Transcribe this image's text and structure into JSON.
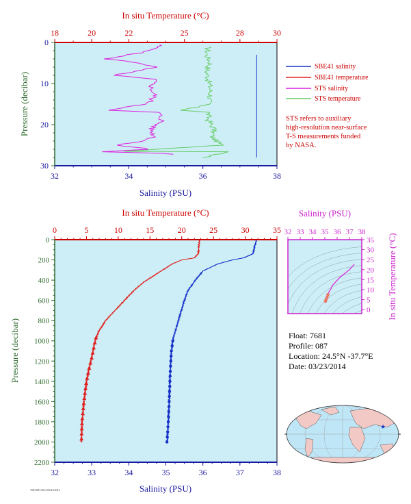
{
  "colors": {
    "plot_bg": "#cdeef6",
    "temperature": "#e0201e",
    "salinity": "#1530c8",
    "sts_salinity": "#dd22dd",
    "sts_temperature": "#66cc66",
    "axis_red": "#cc0000",
    "axis_blue": "#1a1aa0",
    "axis_green": "#2e6b2e",
    "axis_magenta": "#cc22cc"
  },
  "top_panel": {
    "top_axis_title": "In situ Temperature (°C)",
    "bottom_axis_title": "Salinity (PSU)",
    "left_axis_title": "Pressure (decibar)",
    "temp_ticks": [
      "18",
      "20",
      "22",
      "25",
      "28",
      "30"
    ],
    "sal_ticks": [
      "32",
      "34",
      "36",
      "38"
    ],
    "p_ticks": [
      "0",
      "10",
      "20",
      "30"
    ]
  },
  "legend": [
    {
      "label": "SBE41 salinity",
      "color": "#1530c8"
    },
    {
      "label": "SBE41 temperature",
      "color": "#e0201e"
    },
    {
      "label": "STS salinity",
      "color": "#dd22dd"
    },
    {
      "label": "STS temperature",
      "color": "#66cc66"
    }
  ],
  "note": {
    "lines": [
      "STS refers to auxiliary",
      "high-resolution near-surface",
      "T-S measurements funded",
      "by NASA."
    ]
  },
  "main_panel": {
    "top_axis_title": "In situ Temperature (°C)",
    "bottom_axis_title": "Salinity (PSU)",
    "left_axis_title": "Pressure (decibar)",
    "temp_ticks": [
      "0",
      "5",
      "10",
      "15",
      "20",
      "25",
      "30",
      "35"
    ],
    "sal_ticks": [
      "32",
      "33",
      "34",
      "35",
      "36",
      "37",
      "38"
    ],
    "p_ticks": [
      "0",
      "200",
      "400",
      "600",
      "800",
      "1000",
      "1200",
      "1400",
      "1600",
      "1800",
      "2000",
      "2200"
    ]
  },
  "ts_panel": {
    "top_axis_title": "Salinity (PSU)",
    "right_axis_title": "In situ Temperature (°C)",
    "sal_ticks": [
      "32",
      "33",
      "34",
      "35",
      "36",
      "37",
      "38"
    ],
    "temp_ticks": [
      "0",
      "5",
      "10",
      "15",
      "20",
      "25",
      "30",
      "35"
    ]
  },
  "float_info": {
    "float_line": "Float:  7681",
    "profile_line": "Profile:  087",
    "location_line": "Location:  24.5°N  -37.7°E",
    "date_line": "Date:  03/23/2014"
  },
  "footer_code": "7681/087/2014 03/23/2014",
  "chart_data": [
    {
      "type": "line",
      "panel": "near-surface profile",
      "xlabel": "Salinity (PSU)",
      "x2label": "In situ Temperature (°C)",
      "ylabel": "Pressure (decibar)",
      "xlim": [
        32,
        38
      ],
      "x2lim": [
        18,
        30
      ],
      "ylim": [
        30,
        0
      ],
      "series": [
        {
          "name": "SBE41 salinity",
          "points": [
            [
              37.45,
              3
            ],
            [
              37.45,
              28
            ]
          ]
        },
        {
          "name": "SBE41 temperature",
          "points": []
        },
        {
          "name": "STS salinity",
          "points": [
            [
              34.85,
              0.5
            ],
            [
              34.6,
              2
            ],
            [
              33.4,
              4
            ],
            [
              34.3,
              5
            ],
            [
              34.7,
              6
            ],
            [
              33.6,
              8
            ],
            [
              34.7,
              9
            ],
            [
              34.6,
              11
            ],
            [
              34.7,
              13
            ],
            [
              34.5,
              15
            ],
            [
              33.4,
              16.5
            ],
            [
              34.8,
              17
            ],
            [
              34.9,
              19
            ],
            [
              34.6,
              21
            ],
            [
              34.7,
              23
            ],
            [
              34.4,
              24
            ],
            [
              33.7,
              25
            ],
            [
              34.6,
              26
            ],
            [
              33.3,
              26.6
            ],
            [
              34.9,
              27
            ],
            [
              35.2,
              27.2
            ]
          ]
        },
        {
          "name": "STS temperature",
          "points": [
            [
              26.3,
              1
            ],
            [
              26.2,
              3
            ],
            [
              26.4,
              5
            ],
            [
              26.2,
              7
            ],
            [
              26.3,
              9
            ],
            [
              26.4,
              11
            ],
            [
              26.4,
              13
            ],
            [
              26.3,
              15
            ],
            [
              24.9,
              16.5
            ],
            [
              26.3,
              17
            ],
            [
              26.3,
              19
            ],
            [
              26.6,
              21
            ],
            [
              26.5,
              23
            ],
            [
              27.0,
              25
            ],
            [
              21.9,
              26.5
            ],
            [
              27.5,
              26.6
            ],
            [
              26.0,
              28
            ]
          ]
        }
      ]
    },
    {
      "type": "line",
      "panel": "full-depth profile",
      "xlabel": "Salinity (PSU)",
      "x2label": "In situ Temperature (°C)",
      "ylabel": "Pressure (decibar)",
      "xlim": [
        32,
        38
      ],
      "x2lim": [
        0,
        35
      ],
      "ylim": [
        2200,
        0
      ],
      "series": [
        {
          "name": "SBE41 temperature",
          "points": [
            [
              22.8,
              0
            ],
            [
              22.7,
              60
            ],
            [
              22.6,
              140
            ],
            [
              22.0,
              180
            ],
            [
              20.0,
              200
            ],
            [
              18.5,
              240
            ],
            [
              17.0,
              300
            ],
            [
              15.5,
              360
            ],
            [
              14.0,
              420
            ],
            [
              12.5,
              500
            ],
            [
              11.0,
              600
            ],
            [
              9.5,
              700
            ],
            [
              8.0,
              800
            ],
            [
              7.0,
              900
            ],
            [
              6.5,
              970
            ],
            [
              6.2,
              1050
            ],
            [
              5.9,
              1150
            ],
            [
              5.5,
              1250
            ],
            [
              5.0,
              1400
            ],
            [
              4.6,
              1600
            ],
            [
              4.3,
              1800
            ],
            [
              4.2,
              2000
            ]
          ]
        },
        {
          "name": "SBE41 salinity",
          "points": [
            [
              37.45,
              0
            ],
            [
              37.4,
              60
            ],
            [
              37.35,
              140
            ],
            [
              37.1,
              180
            ],
            [
              36.8,
              200
            ],
            [
              36.4,
              240
            ],
            [
              36.0,
              310
            ],
            [
              35.8,
              400
            ],
            [
              35.6,
              500
            ],
            [
              35.5,
              600
            ],
            [
              35.4,
              720
            ],
            [
              35.3,
              850
            ],
            [
              35.2,
              970
            ],
            [
              35.15,
              1100
            ],
            [
              35.12,
              1300
            ],
            [
              35.1,
              1500
            ],
            [
              35.08,
              1700
            ],
            [
              35.05,
              1900
            ],
            [
              35.03,
              2000
            ]
          ]
        }
      ]
    },
    {
      "type": "scatter",
      "panel": "T-S diagram",
      "xlabel": "Salinity (PSU)",
      "ylabel": "In situ Temperature (°C)",
      "xlim": [
        32,
        38
      ],
      "ylim": [
        -2,
        35
      ],
      "series": [
        {
          "name": "T-S",
          "points": [
            [
              37.4,
              22.7
            ],
            [
              37.0,
              20.0
            ],
            [
              36.6,
              18.0
            ],
            [
              36.2,
              16.0
            ],
            [
              35.9,
              14.0
            ],
            [
              35.6,
              12.0
            ],
            [
              35.5,
              10.5
            ],
            [
              35.35,
              9.0
            ],
            [
              35.25,
              7.5
            ],
            [
              35.18,
              6.2
            ],
            [
              35.1,
              5.0
            ],
            [
              35.05,
              4.2
            ]
          ]
        }
      ]
    }
  ]
}
